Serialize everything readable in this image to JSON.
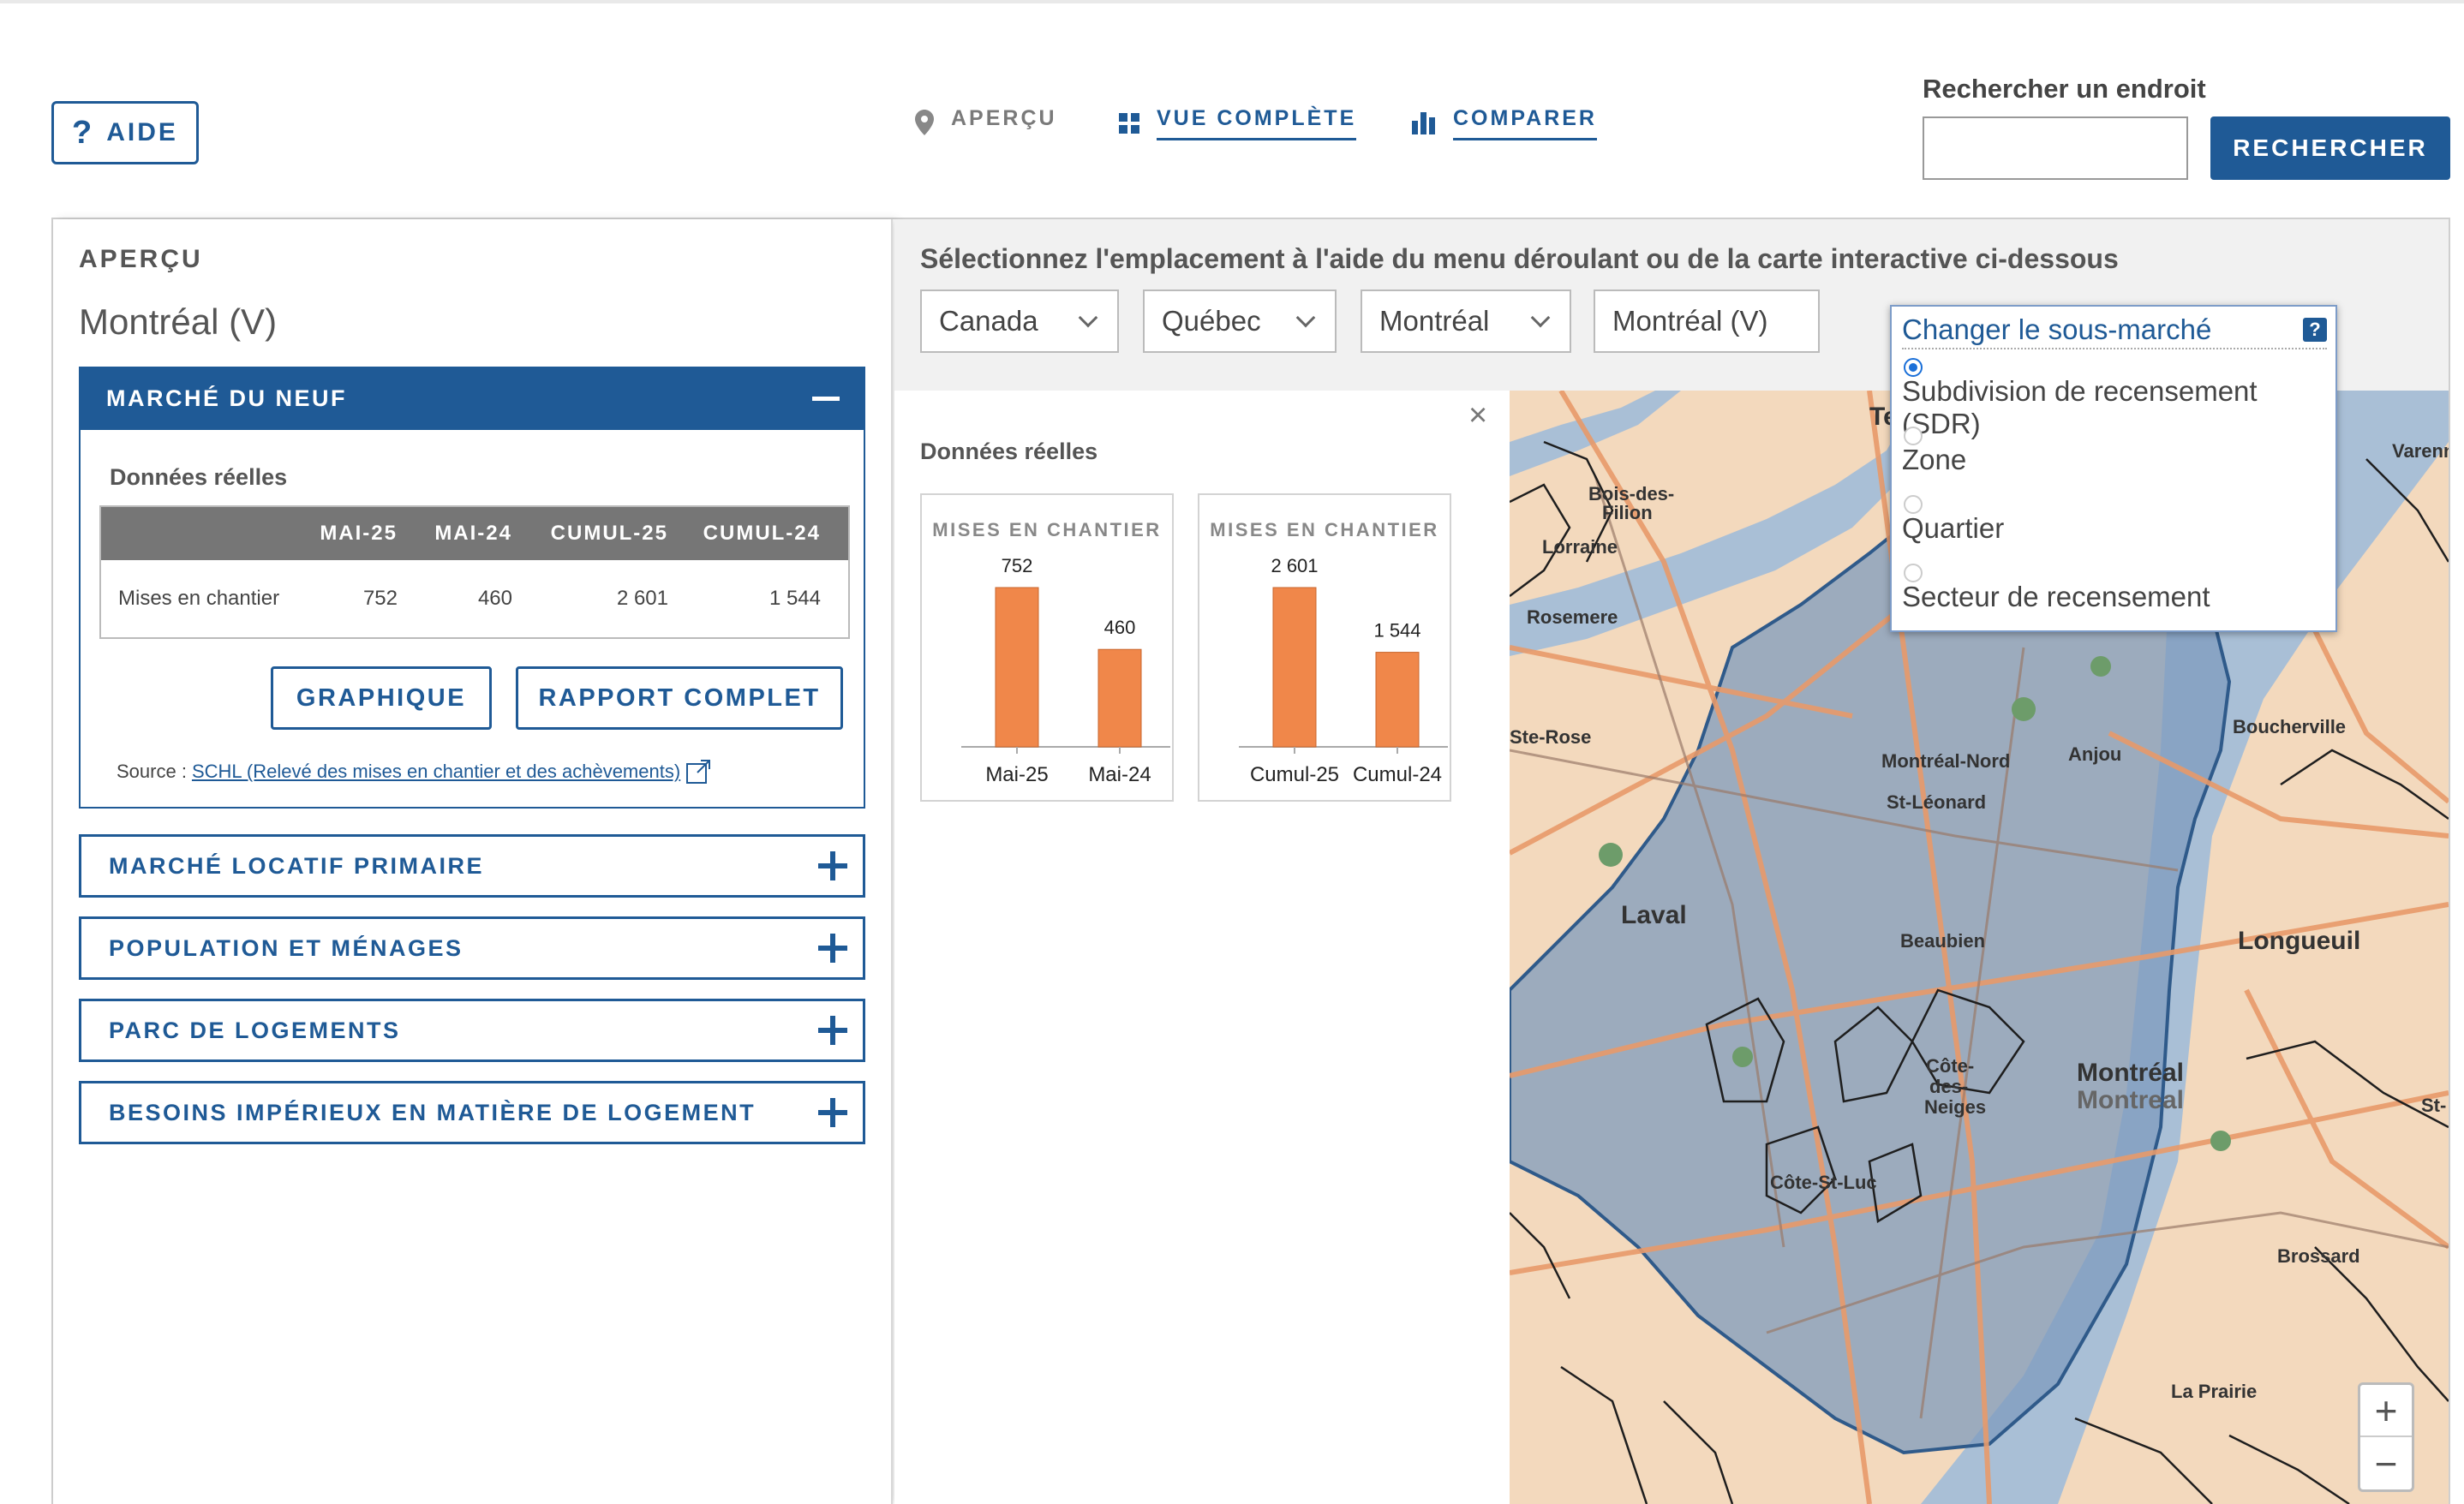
{
  "header": {
    "help_label": "AIDE",
    "help_icon": "?",
    "nav": [
      {
        "label": "APERÇU",
        "icon": "map-pin-icon"
      },
      {
        "label": "VUE COMPLÈTE",
        "icon": "grid-icon"
      },
      {
        "label": "COMPARER",
        "icon": "bar-chart-icon"
      }
    ],
    "search_label": "Rechercher un endroit",
    "search_value": "",
    "search_button": "RECHERCHER"
  },
  "left_panel": {
    "title": "APERÇU",
    "location": "Montréal (V)",
    "open_section": {
      "title": "MARCHÉ DU NEUF",
      "data_label": "Données réelles",
      "table": {
        "headers": [
          "",
          "MAI-25",
          "MAI-24",
          "CUMUL-25",
          "CUMUL-24"
        ],
        "rows": [
          [
            "Mises en chantier",
            "752",
            "460",
            "2 601",
            "1 544"
          ]
        ]
      },
      "btn_graph": "GRAPHIQUE",
      "btn_report": "RAPPORT COMPLET",
      "source_prefix": "Source :",
      "source_link": "SCHL (Relevé des mises en chantier et des achèvements)"
    },
    "sections": [
      "MARCHÉ LOCATIF PRIMAIRE",
      "POPULATION ET MÉNAGES",
      "PARC DE LOGEMENTS",
      "BESOINS IMPÉRIEUX EN MATIÈRE DE LOGEMENT"
    ]
  },
  "right_panel": {
    "instruction": "Sélectionnez l'emplacement à l'aide du menu déroulant ou de la carte interactive ci-dessous",
    "dropdowns": [
      "Canada",
      "Québec",
      "Montréal",
      "Montréal (V)"
    ],
    "data_label": "Données réelles",
    "close_icon": "×"
  },
  "chart_data": [
    {
      "type": "bar",
      "title": "MISES EN CHANTIER",
      "categories": [
        "Mai-25",
        "Mai-24"
      ],
      "values": [
        752,
        460
      ],
      "value_labels": [
        "752",
        "460"
      ],
      "color": "#f0874a"
    },
    {
      "type": "bar",
      "title": "MISES EN CHANTIER",
      "categories": [
        "Cumul-25",
        "Cumul-24"
      ],
      "values": [
        2601,
        1544
      ],
      "value_labels": [
        "2 601",
        "1 544"
      ],
      "color": "#f0874a"
    }
  ],
  "popup": {
    "title": "Changer le sous-marché",
    "help": "?",
    "options": [
      "Subdivision de recensement (SDR)",
      "Zone",
      "Quartier",
      "Secteur de recensement"
    ],
    "selected": 0
  },
  "map": {
    "labels": [
      "Te",
      "Varenne",
      "Bois-des-Filion",
      "Lorraine",
      "Rosemere",
      "Ste-Rose",
      "Laval",
      "Montréal-Nord",
      "St-Léonard",
      "Anjou",
      "Beaubien",
      "Boucherville",
      "Longueuil",
      "Côte-des-Neiges",
      "Montréal",
      "Montreal",
      "Côte-St-Luc",
      "Brossard",
      "La Prairie",
      "St-"
    ],
    "zoom_in": "+",
    "zoom_out": "−"
  }
}
